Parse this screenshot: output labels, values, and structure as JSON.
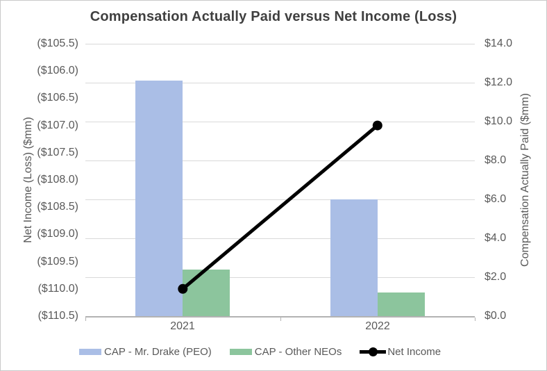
{
  "chart_data": {
    "type": "combo-bar-line",
    "title": "Compensation Actually Paid versus Net Income (Loss)",
    "categories": [
      "2021",
      "2022"
    ],
    "bar_series": [
      {
        "key": "cap-peo",
        "name": "CAP - Mr. Drake (PEO)",
        "axis": "right",
        "color": "#aabee6",
        "values": [
          12.1,
          6.0
        ]
      },
      {
        "key": "cap-neos",
        "name": "CAP - Other NEOs",
        "axis": "right",
        "color": "#8cc59d",
        "values": [
          2.4,
          1.2
        ]
      }
    ],
    "line_series": [
      {
        "key": "net-income",
        "name": "Net Income",
        "axis": "left",
        "color": "#000000",
        "values": [
          -110.0,
          -107.0
        ]
      }
    ],
    "left_axis": {
      "title": "Net Income (Loss) ($mm)",
      "min": -110.5,
      "max": -105.5,
      "tick_labels": [
        "($105.5)",
        "($106.0)",
        "($106.5)",
        "($107.0)",
        "($107.5)",
        "($108.0)",
        "($108.5)",
        "($109.0)",
        "($109.5)",
        "($110.0)",
        "($110.5)"
      ]
    },
    "right_axis": {
      "title": "Compensation Actually Paid ($mm)",
      "min": 0,
      "max": 14,
      "tick_labels": [
        "$14.0",
        "$12.0",
        "$10.0",
        "$8.0",
        "$6.0",
        "$4.0",
        "$2.0",
        "$0.0"
      ]
    },
    "grid": true,
    "legend_position": "bottom",
    "colors": {
      "title_text": "#404040",
      "axis_text": "#595959",
      "gridline": "#d9d9d9",
      "axis_line": "#b3b3b3",
      "frame_border": "#c9c9c9"
    }
  }
}
